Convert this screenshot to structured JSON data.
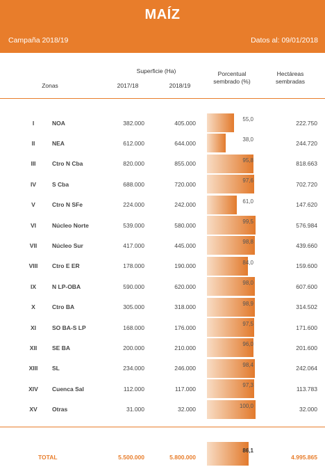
{
  "header": {
    "title": "MAÍZ",
    "campaign": "Campaña 2018/19",
    "date": "Datos al: 09/01/2018"
  },
  "columns": {
    "zones": "Zonas",
    "surface": "Superficie (Ha)",
    "y1": "2017/18",
    "y2": "2018/19",
    "pct_line1": "Porcentual",
    "pct_line2": "sembrado (%)",
    "ha_line1": "Hectáreas",
    "ha_line2": "sembradas"
  },
  "rows": [
    {
      "roman": "I",
      "zone": "NOA",
      "s1718": "382.000",
      "s1819": "405.000",
      "pct_label": "55,0",
      "pct": 55.0,
      "ha": "222.750"
    },
    {
      "roman": "II",
      "zone": "NEA",
      "s1718": "612.000",
      "s1819": "644.000",
      "pct_label": "38,0",
      "pct": 38.0,
      "ha": "244.720"
    },
    {
      "roman": "III",
      "zone": "Ctro N Cba",
      "s1718": "820.000",
      "s1819": "855.000",
      "pct_label": "95,8",
      "pct": 95.8,
      "ha": "818.663"
    },
    {
      "roman": "IV",
      "zone": "S Cba",
      "s1718": "688.000",
      "s1819": "720.000",
      "pct_label": "97,6",
      "pct": 97.6,
      "ha": "702.720"
    },
    {
      "roman": "V",
      "zone": "Ctro N SFe",
      "s1718": "224.000",
      "s1819": "242.000",
      "pct_label": "61,0",
      "pct": 61.0,
      "ha": "147.620"
    },
    {
      "roman": "VI",
      "zone": "Núcleo Norte",
      "s1718": "539.000",
      "s1819": "580.000",
      "pct_label": "99,5",
      "pct": 99.5,
      "ha": "576.984"
    },
    {
      "roman": "VII",
      "zone": "Núcleo Sur",
      "s1718": "417.000",
      "s1819": "445.000",
      "pct_label": "98,8",
      "pct": 98.8,
      "ha": "439.660"
    },
    {
      "roman": "VIII",
      "zone": "Ctro E ER",
      "s1718": "178.000",
      "s1819": "190.000",
      "pct_label": "84,0",
      "pct": 84.0,
      "ha": "159.600"
    },
    {
      "roman": "IX",
      "zone": "N LP-OBA",
      "s1718": "590.000",
      "s1819": "620.000",
      "pct_label": "98,0",
      "pct": 98.0,
      "ha": "607.600"
    },
    {
      "roman": "X",
      "zone": "Ctro BA",
      "s1718": "305.000",
      "s1819": "318.000",
      "pct_label": "98,9",
      "pct": 98.9,
      "ha": "314.502"
    },
    {
      "roman": "XI",
      "zone": "SO BA-S LP",
      "s1718": "168.000",
      "s1819": "176.000",
      "pct_label": "97,5",
      "pct": 97.5,
      "ha": "171.600"
    },
    {
      "roman": "XII",
      "zone": "SE BA",
      "s1718": "200.000",
      "s1819": "210.000",
      "pct_label": "96,0",
      "pct": 96.0,
      "ha": "201.600"
    },
    {
      "roman": "XIII",
      "zone": "SL",
      "s1718": "234.000",
      "s1819": "246.000",
      "pct_label": "98,4",
      "pct": 98.4,
      "ha": "242.064"
    },
    {
      "roman": "XIV",
      "zone": "Cuenca Sal",
      "s1718": "112.000",
      "s1819": "117.000",
      "pct_label": "97,3",
      "pct": 97.3,
      "ha": "113.783"
    },
    {
      "roman": "XV",
      "zone": "Otras",
      "s1718": "31.000",
      "s1819": "32.000",
      "pct_label": "100,0",
      "pct": 100.0,
      "ha": "32.000"
    }
  ],
  "total": {
    "label": "TOTAL",
    "s1718": "5.500.000",
    "s1819": "5.800.000",
    "pct_label": "86,1",
    "pct": 86.1,
    "ha": "4.995.865"
  },
  "colors": {
    "accent": "#e87d2b"
  }
}
